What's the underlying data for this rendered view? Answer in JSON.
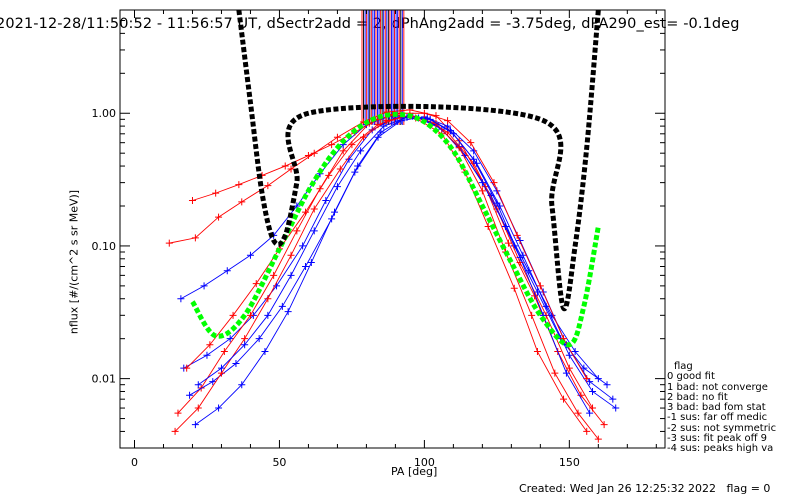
{
  "title": "2021-12-28/11:50:52 - 11:56:57 UT, dSectr2add = 2, dPhAng2add = -3.75deg, dPA290_est=  -0.1deg",
  "footer": "Created: Wed Jan 26 12:25:32 2022   flag = 0",
  "legend": {
    "title": "flag",
    "items": [
      " 0 good fit",
      " 1 bad: not converge",
      " 2 bad: no fit",
      " 3 bad: bad fom stat",
      "-1 sus: far off medic",
      "-2 sus: not symmetric",
      "-3 sus: fit peak off 9",
      "-4 sus: peaks high va"
    ]
  },
  "colors": {
    "red": "#ff0000",
    "blue": "#0000ff",
    "green": "#00ff00",
    "black": "#000000"
  },
  "chart_data": {
    "type": "line",
    "xlabel": "PA [deg]",
    "ylabel": "nflux [#/(cm^2 s sr MeV)]",
    "xlim": [
      -5,
      183
    ],
    "ylim": [
      0.003,
      6.0
    ],
    "yscale": "log",
    "xticks": [
      0,
      50,
      100,
      150
    ],
    "xtick_labels": [
      "0",
      "50",
      "100",
      "150"
    ],
    "yticks": [
      0.01,
      0.1,
      1.0
    ],
    "ytick_labels": [
      "0.01",
      "0.10",
      "1.00"
    ],
    "series": [
      {
        "color": "red",
        "style": "line-plus",
        "samples": [
          {
            "x": [
              12,
              21,
              29,
              37,
              46,
              54,
              62,
              70,
              79,
              87,
              95,
              104,
              112,
              121,
              129,
              138,
              146,
              154,
              162
            ],
            "y": [
              0.105,
              0.115,
              0.165,
              0.215,
              0.285,
              0.38,
              0.5,
              0.66,
              0.86,
              1.02,
              1.06,
              0.96,
              0.62,
              0.28,
              0.105,
              0.042,
              0.016,
              0.0075,
              0.0045
            ]
          },
          {
            "x": [
              15,
              23,
              31,
              40,
              48,
              56,
              64,
              72,
              81,
              89,
              97,
              106,
              114,
              122,
              131,
              139,
              148,
              156
            ],
            "y": [
              0.0055,
              0.0085,
              0.016,
              0.03,
              0.06,
              0.13,
              0.27,
              0.52,
              0.84,
              0.98,
              0.92,
              0.7,
              0.36,
              0.14,
              0.048,
              0.016,
              0.007,
              0.004
            ]
          },
          {
            "x": [
              18,
              26,
              34,
              42,
              50,
              59,
              67,
              75,
              84,
              92,
              100,
              108,
              117,
              125,
              133,
              142,
              150,
              158
            ],
            "y": [
              0.012,
              0.018,
              0.03,
              0.052,
              0.095,
              0.18,
              0.34,
              0.58,
              0.82,
              0.93,
              0.9,
              0.72,
              0.42,
              0.19,
              0.075,
              0.03,
              0.012,
              0.006
            ]
          },
          {
            "x": [
              14,
              22,
              30,
              38,
              46,
              54,
              62,
              71,
              79,
              87,
              95,
              104,
              112,
              120,
              128,
              137,
              145,
              153,
              160
            ],
            "y": [
              0.004,
              0.006,
              0.011,
              0.02,
              0.04,
              0.085,
              0.19,
              0.38,
              0.66,
              0.88,
              0.96,
              0.84,
              0.55,
              0.26,
              0.09,
              0.03,
              0.011,
              0.0055,
              0.0035
            ]
          },
          {
            "x": [
              20,
              28,
              36,
              44,
              52,
              60,
              68,
              76,
              84,
              92,
              100,
              108,
              116,
              124,
              132,
              140,
              148,
              156
            ],
            "y": [
              0.22,
              0.25,
              0.29,
              0.34,
              0.4,
              0.48,
              0.58,
              0.72,
              0.9,
              1.0,
              1.0,
              0.88,
              0.6,
              0.3,
              0.12,
              0.05,
              0.02,
              0.01
            ]
          }
        ]
      },
      {
        "color": "blue",
        "style": "line-plus",
        "samples": [
          {
            "x": [
              17,
              25,
              33,
              41,
              49,
              58,
              66,
              74,
              82,
              90,
              98,
              106,
              114,
              123,
              131,
              139,
              147,
              155,
              163
            ],
            "y": [
              0.012,
              0.015,
              0.02,
              0.03,
              0.05,
              0.1,
              0.22,
              0.45,
              0.75,
              0.92,
              0.92,
              0.76,
              0.48,
              0.24,
              0.1,
              0.045,
              0.02,
              0.012,
              0.009
            ]
          },
          {
            "x": [
              19,
              27,
              35,
              43,
              51,
              59,
              68,
              76,
              84,
              92,
              100,
              108,
              117,
              125,
              133,
              141,
              149,
              157,
              165
            ],
            "y": [
              0.0075,
              0.0095,
              0.013,
              0.02,
              0.035,
              0.07,
              0.16,
              0.36,
              0.66,
              0.88,
              0.94,
              0.8,
              0.52,
              0.26,
              0.11,
              0.045,
              0.018,
              0.0095,
              0.007
            ]
          },
          {
            "x": [
              16,
              24,
              32,
              40,
              48,
              56,
              64,
              72,
              80,
              88,
              96,
              104,
              112,
              120,
              128,
              136,
              144,
              152,
              160
            ],
            "y": [
              0.04,
              0.05,
              0.065,
              0.085,
              0.12,
              0.2,
              0.35,
              0.58,
              0.82,
              0.95,
              0.95,
              0.82,
              0.56,
              0.3,
              0.14,
              0.065,
              0.03,
              0.016,
              0.01
            ]
          },
          {
            "x": [
              22,
              30,
              38,
              46,
              54,
              62,
              70,
              78,
              86,
              94,
              102,
              110,
              118,
              126,
              134,
              142,
              150,
              158,
              166
            ],
            "y": [
              0.009,
              0.012,
              0.018,
              0.03,
              0.06,
              0.13,
              0.28,
              0.52,
              0.8,
              0.93,
              0.9,
              0.7,
              0.42,
              0.2,
              0.085,
              0.035,
              0.015,
              0.008,
              0.006
            ]
          },
          {
            "x": [
              21,
              29,
              37,
              45,
              53,
              61,
              69,
              77,
              85,
              93,
              101,
              109,
              117,
              125,
              133,
              141,
              149,
              157
            ],
            "y": [
              0.0045,
              0.006,
              0.009,
              0.016,
              0.032,
              0.075,
              0.18,
              0.4,
              0.72,
              0.92,
              0.92,
              0.74,
              0.45,
              0.21,
              0.082,
              0.03,
              0.011,
              0.0055
            ]
          }
        ]
      },
      {
        "name": "fit",
        "color": "green",
        "style": "thick-dotted",
        "x": [
          20,
          28,
          38,
          50,
          60,
          70,
          80,
          90,
          100,
          110,
          120,
          130,
          140,
          150,
          155,
          160
        ],
        "y": [
          0.038,
          0.021,
          0.03,
          0.095,
          0.26,
          0.55,
          0.85,
          0.98,
          0.86,
          0.52,
          0.2,
          0.075,
          0.03,
          0.018,
          0.035,
          0.14
        ]
      },
      {
        "name": "fit",
        "color": "black",
        "style": "thick-dotted",
        "x": [
          36,
          40,
          44,
          48,
          52,
          56,
          60,
          140,
          144,
          148,
          152,
          156,
          160
        ],
        "y": [
          6.0,
          1.2,
          0.25,
          0.11,
          0.12,
          0.3,
          1.0,
          0.9,
          0.2,
          0.034,
          0.1,
          0.55,
          6.0
        ]
      }
    ]
  }
}
